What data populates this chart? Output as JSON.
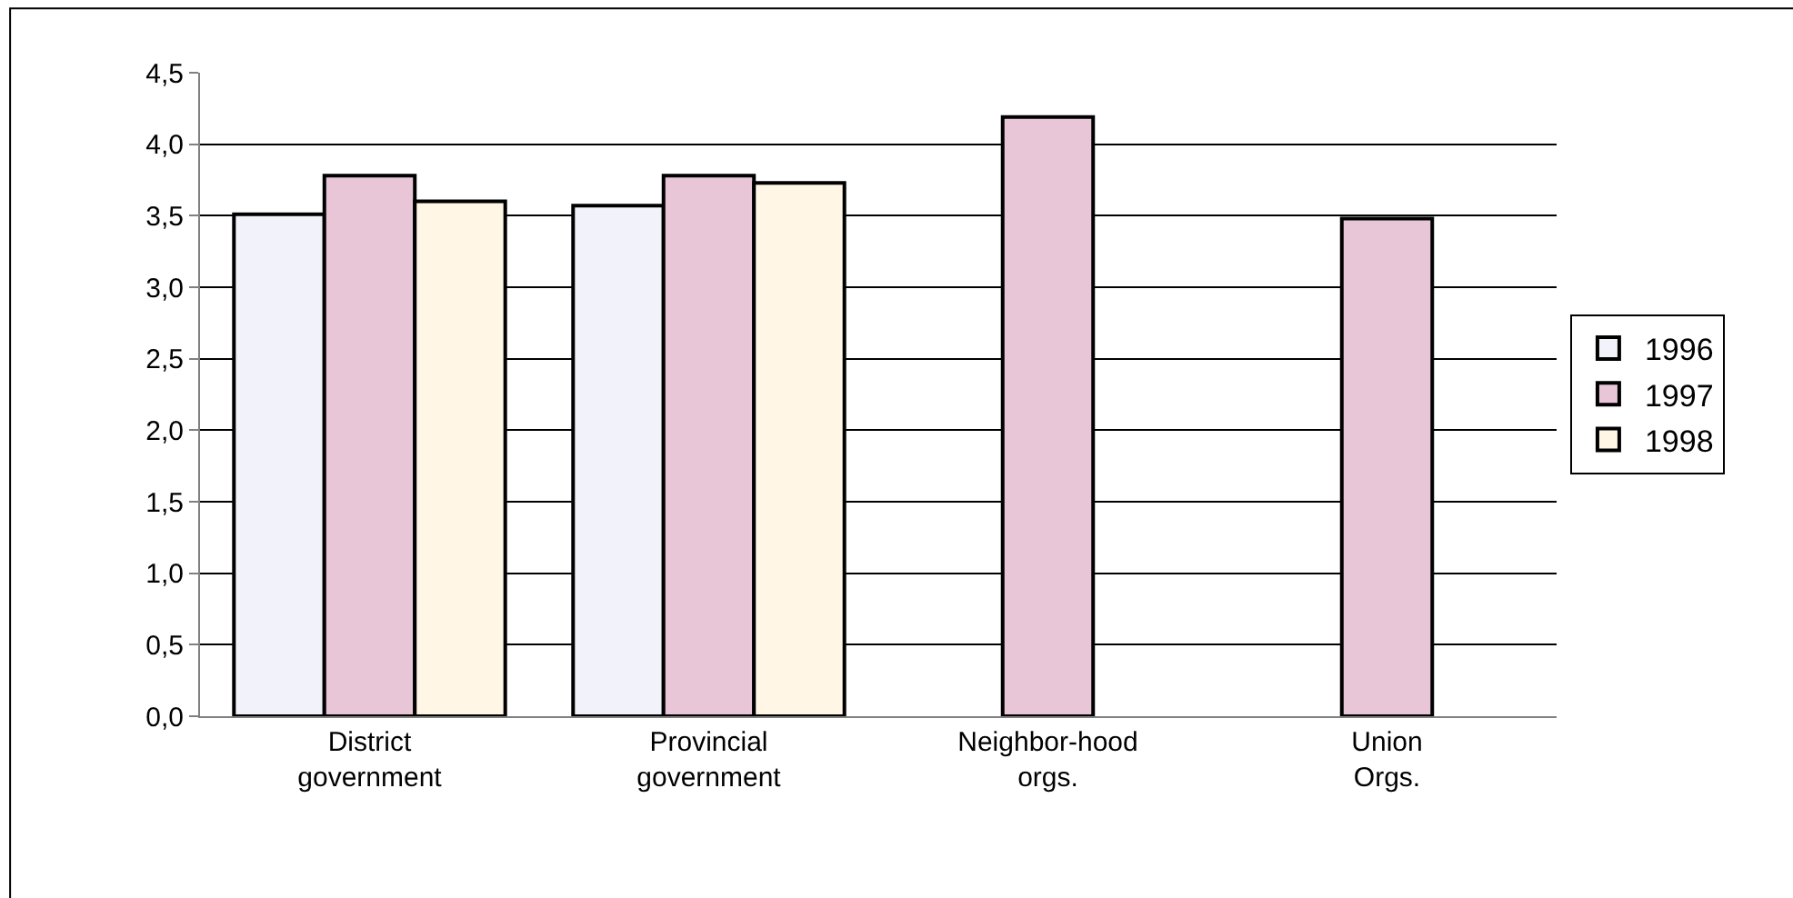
{
  "chart_data": {
    "type": "bar",
    "categories": [
      "District government",
      "Provincial government",
      "Neighbor-hood orgs.",
      "Union Orgs."
    ],
    "series": [
      {
        "name": "1996",
        "color": "#f2f2fa",
        "values": [
          3.51,
          3.57,
          null,
          null
        ]
      },
      {
        "name": "1997",
        "color": "#e8c6d8",
        "values": [
          3.78,
          3.78,
          4.19,
          3.48
        ]
      },
      {
        "name": "1998",
        "color": "#fff6e6",
        "values": [
          3.6,
          3.73,
          null,
          null
        ]
      }
    ],
    "ylim": [
      0,
      4.5
    ],
    "yticks": [
      {
        "value": 0,
        "label": "0,0"
      },
      {
        "value": 0.5,
        "label": "0,5"
      },
      {
        "value": 1,
        "label": "1,0"
      },
      {
        "value": 1.5,
        "label": "1,5"
      },
      {
        "value": 2,
        "label": "2,0"
      },
      {
        "value": 2.5,
        "label": "2,5"
      },
      {
        "value": 3,
        "label": "3,0"
      },
      {
        "value": 3.5,
        "label": "3,5"
      },
      {
        "value": 4,
        "label": "4,0"
      },
      {
        "value": 4.5,
        "label": "4,5"
      }
    ],
    "grid": "y",
    "legend": "right"
  }
}
